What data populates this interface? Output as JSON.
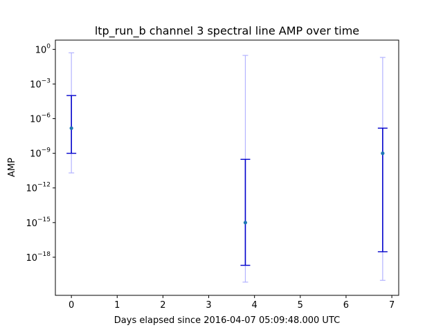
{
  "chart_data": {
    "type": "scatter",
    "title": "ltp_run_b channel 3 spectral line AMP over time",
    "xlabel": "Days elapsed since 2016-04-07 05:09:48.000 UTC",
    "ylabel": "AMP",
    "xlim": [
      -0.35,
      7.15
    ],
    "ylim_exponent": [
      -21.3,
      0.8
    ],
    "yscale": "log",
    "x_ticks": [
      0,
      1,
      2,
      3,
      4,
      5,
      6,
      7
    ],
    "y_tick_exponents": [
      0,
      -3,
      -6,
      -9,
      -12,
      -15,
      -18
    ],
    "grid": false,
    "colors": {
      "point": "#1f77b4",
      "inner_errorbar": "#0000cc",
      "outer_errorbar": "#b3b3ff"
    },
    "points": [
      {
        "x": 0.0,
        "y": 1.5e-07,
        "inner": [
          1e-09,
          0.0001
        ],
        "outer": [
          2e-11,
          0.5
        ]
      },
      {
        "x": 3.8,
        "y": 1e-15,
        "inner": [
          2e-19,
          3e-10
        ],
        "outer": [
          7e-21,
          0.3
        ]
      },
      {
        "x": 6.8,
        "y": 1e-09,
        "inner": [
          3e-18,
          1.5e-07
        ],
        "outer": [
          1e-20,
          0.2
        ]
      }
    ]
  }
}
